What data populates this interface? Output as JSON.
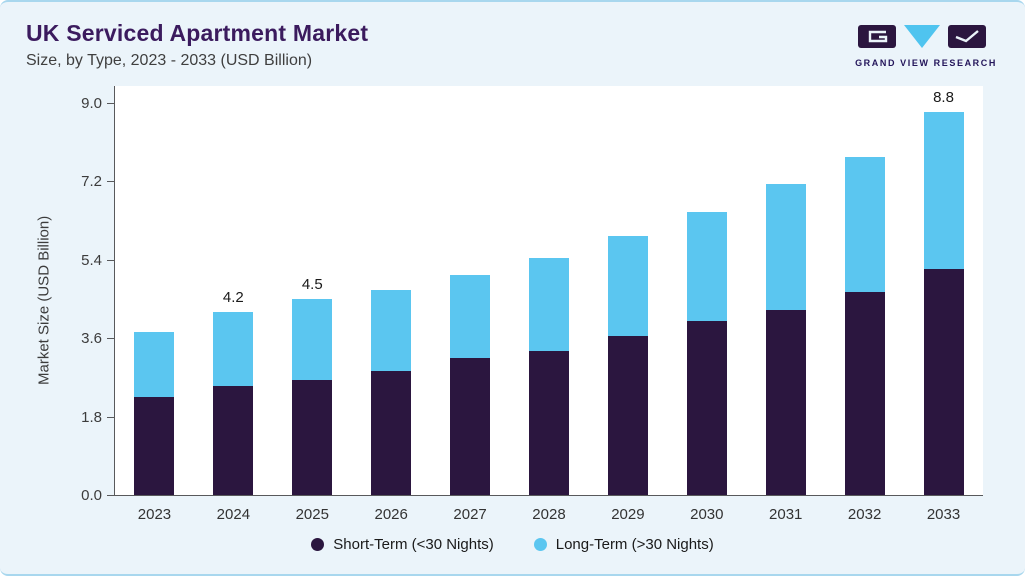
{
  "header": {
    "title": "UK Serviced Apartment Market",
    "subtitle": "Size, by Type, 2023 - 2033 (USD Billion)"
  },
  "logo": {
    "text": "GRAND VIEW RESEARCH",
    "dark_color": "#2B163F",
    "accent_color": "#4FC4EF"
  },
  "chart_data": {
    "type": "bar",
    "stacked": true,
    "title": "UK Serviced Apartment Market Size, by Type, 2023 - 2033 (USD Billion)",
    "categories": [
      "2023",
      "2024",
      "2025",
      "2026",
      "2027",
      "2028",
      "2029",
      "2030",
      "2031",
      "2032",
      "2033"
    ],
    "series": [
      {
        "name": "Short-Term (<30 Nights)",
        "color": "#2B163F",
        "values": [
          2.25,
          2.5,
          2.65,
          2.85,
          3.15,
          3.3,
          3.65,
          4.0,
          4.25,
          4.65,
          5.2
        ]
      },
      {
        "name": "Long-Term (>30 Nights)",
        "color": "#5BC6F0",
        "values": [
          1.5,
          1.7,
          1.85,
          1.85,
          1.9,
          2.15,
          2.3,
          2.5,
          2.9,
          3.1,
          3.6
        ]
      }
    ],
    "totals": [
      3.75,
      4.2,
      4.5,
      4.7,
      5.05,
      5.45,
      5.95,
      6.5,
      7.15,
      7.75,
      8.8
    ],
    "annotations": [
      {
        "category": "2024",
        "text": "4.2"
      },
      {
        "category": "2025",
        "text": "4.5"
      },
      {
        "category": "2033",
        "text": "8.8"
      }
    ],
    "xlabel": "",
    "ylabel": "Market Size (USD Billion)",
    "ylim": [
      0,
      9.0
    ],
    "yticks": [
      0.0,
      1.8,
      3.6,
      5.4,
      7.2,
      9.0
    ],
    "grid": false,
    "legend_position": "bottom"
  },
  "legend": {
    "items": [
      {
        "label": "Short-Term (<30 Nights)",
        "color": "#2B163F"
      },
      {
        "label": "Long-Term (>30 Nights)",
        "color": "#5BC6F0"
      }
    ]
  }
}
